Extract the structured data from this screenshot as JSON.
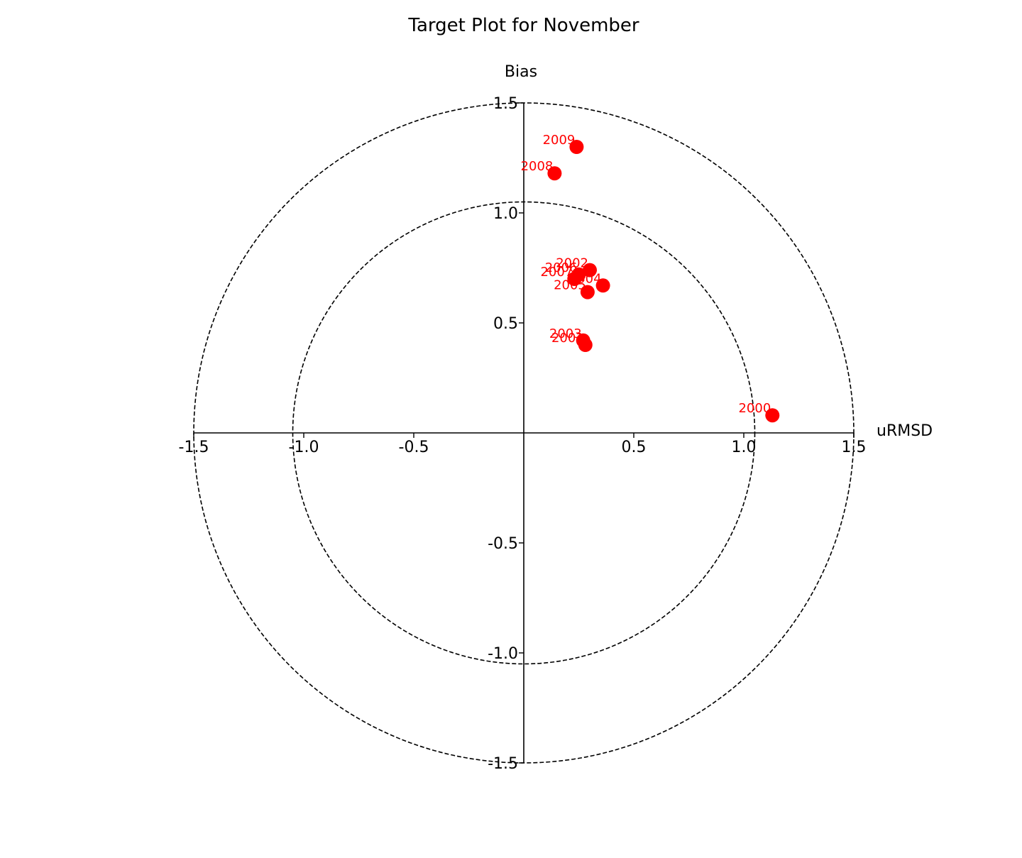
{
  "chart_data": {
    "type": "scatter",
    "title": "Target Plot for November",
    "xlabel": "uRMSD",
    "ylabel": "Bias",
    "xlim": [
      -1.5,
      1.5
    ],
    "ylim": [
      -1.5,
      1.5
    ],
    "x_ticks": [
      "-1.5",
      "-1.0",
      "-0.5",
      "0.5",
      "1.0",
      "1.5"
    ],
    "x_tick_values": [
      -1.5,
      -1.0,
      -0.5,
      0.5,
      1.0,
      1.5
    ],
    "y_ticks": [
      "-1.5",
      "-1.0",
      "-0.5",
      "0.5",
      "1.0",
      "1.5"
    ],
    "y_tick_values": [
      -1.5,
      -1.0,
      -0.5,
      0.5,
      1.0,
      1.5
    ],
    "circles": [
      1.05,
      1.5
    ],
    "grid": false,
    "color": "#ff0000",
    "points": [
      {
        "label": "2000",
        "x": 1.13,
        "y": 0.08
      },
      {
        "label": "2001",
        "x": 0.28,
        "y": 0.4
      },
      {
        "label": "2002",
        "x": 0.3,
        "y": 0.74
      },
      {
        "label": "2003",
        "x": 0.27,
        "y": 0.42
      },
      {
        "label": "2004",
        "x": 0.36,
        "y": 0.67
      },
      {
        "label": "2005",
        "x": 0.29,
        "y": 0.64
      },
      {
        "label": "2006",
        "x": 0.25,
        "y": 0.72
      },
      {
        "label": "2007",
        "x": 0.23,
        "y": 0.7
      },
      {
        "label": "2008",
        "x": 0.14,
        "y": 1.18
      },
      {
        "label": "2009",
        "x": 0.24,
        "y": 1.3
      }
    ]
  }
}
